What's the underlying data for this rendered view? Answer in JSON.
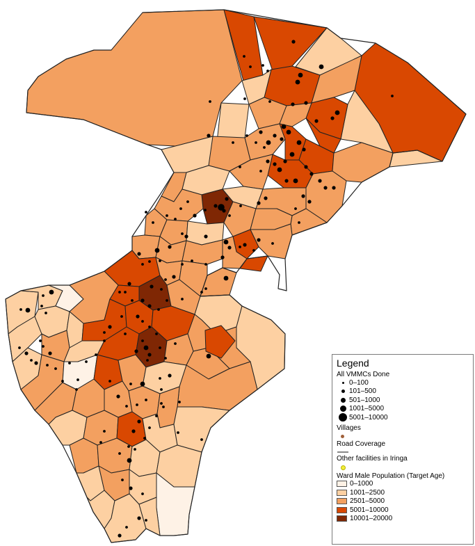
{
  "colors": {
    "c0": "#fef2e6",
    "c1": "#fdd0a2",
    "c2": "#f3a060",
    "c3": "#d94801",
    "c4": "#7f2704",
    "outline": "#222222",
    "dots": "#000000",
    "village": "#a0603a",
    "road": "#888888",
    "facility": "#f2ee3a"
  },
  "legend": {
    "title": "Legend",
    "vmmc_title": "All VMMCs Done",
    "vmmc_classes": [
      "0–100",
      "101–500",
      "501–1000",
      "1001–5000",
      "5001–10000"
    ],
    "villages_label": "Villages",
    "roads_label": "Road Coverage",
    "facilities_label": "Other facilities in Iringa",
    "pop_title": "Ward Male Population (Target Age)",
    "pop_classes": [
      "0–1000",
      "1001–2500",
      "2501–5000",
      "5001–10000",
      "10001–20000"
    ]
  }
}
